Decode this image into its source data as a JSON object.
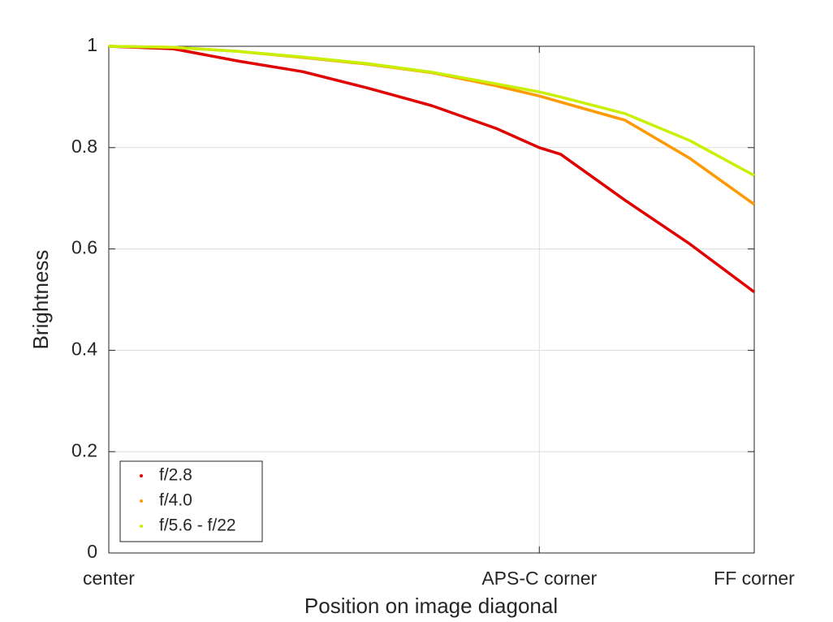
{
  "chart_data": {
    "type": "line",
    "xlabel": "Position on image diagonal",
    "ylabel": "Brightness",
    "x": [
      0,
      0.1,
      0.2,
      0.3,
      0.4,
      0.5,
      0.6,
      0.667,
      0.7,
      0.8,
      0.9,
      1.0
    ],
    "series": [
      {
        "name": "f/2.8",
        "color": "#e00000",
        "values": [
          1.0,
          0.995,
          0.971,
          0.95,
          0.918,
          0.883,
          0.838,
          0.8,
          0.787,
          0.696,
          0.61,
          0.515
        ]
      },
      {
        "name": "f/4.0",
        "color": "#ff9900",
        "values": [
          1.0,
          0.998,
          0.99,
          0.978,
          0.965,
          0.948,
          0.922,
          0.902,
          0.89,
          0.854,
          0.779,
          0.688
        ]
      },
      {
        "name": "f/5.6 - f/22",
        "color": "#c8f000",
        "values": [
          1.0,
          0.998,
          0.99,
          0.979,
          0.966,
          0.949,
          0.926,
          0.91,
          0.9,
          0.867,
          0.814,
          0.745
        ]
      }
    ],
    "xlim": [
      0,
      1
    ],
    "xticks": [
      {
        "value": 0,
        "label": "center"
      },
      {
        "value": 0.667,
        "label": "APS-C corner"
      },
      {
        "value": 1,
        "label": "FF corner"
      }
    ],
    "ylim": [
      0,
      1
    ],
    "yticks": [
      0,
      0.2,
      0.4,
      0.6,
      0.8,
      1
    ],
    "grid": true,
    "legend": "lower left"
  }
}
